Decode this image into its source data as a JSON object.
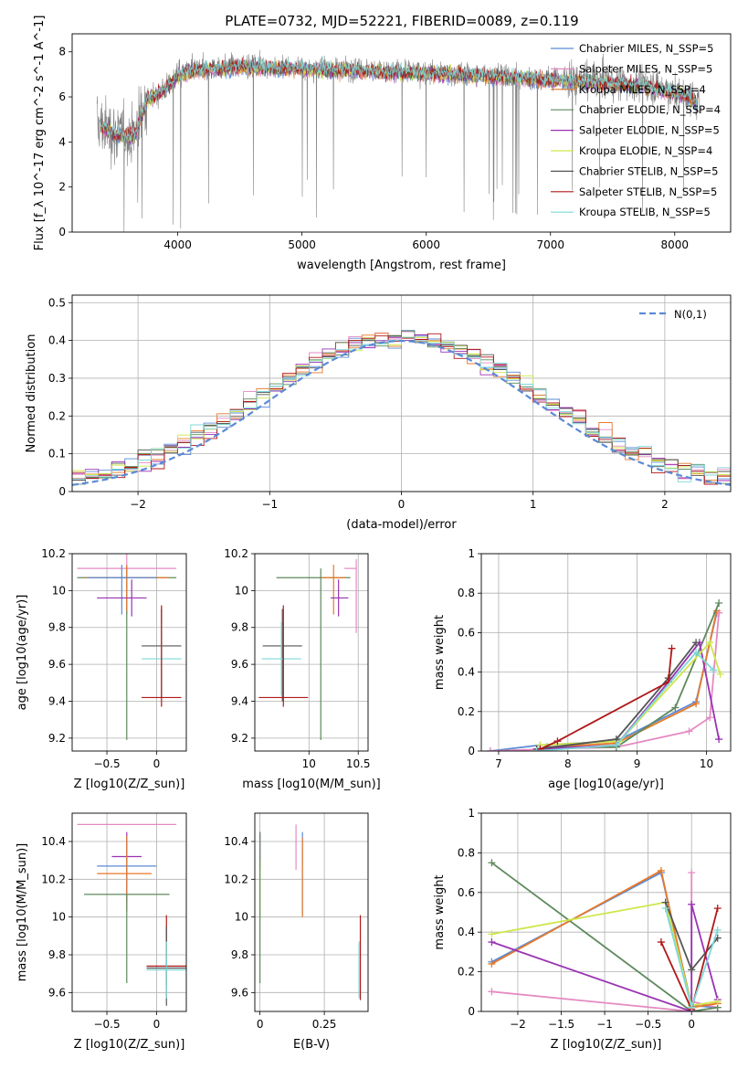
{
  "figure": {
    "title": "PLATE=0732, MJD=52221, FIBERID=0089, z=0.119"
  },
  "palette": {
    "Chabrier MILES": "#5b8ad6",
    "Salpeter MILES": "#e58ac2",
    "Kroupa MILES": "#e8792a",
    "Chabrier ELODIE": "#5d8a5d",
    "Salpeter ELODIE": "#9a33b3",
    "Kroupa ELODIE": "#cfe64a",
    "Chabrier STELIB": "#555555",
    "Salpeter STELIB": "#b01818",
    "Kroupa STELIB": "#7fd8d8",
    "observed": "#808080",
    "normal": "#5b8ad6"
  },
  "chart_data": [
    {
      "id": "spectrum",
      "type": "line",
      "title": "PLATE=0732, MJD=52221, FIBERID=0089, z=0.119",
      "xlabel": "wavelength [Angstrom, rest frame]",
      "ylabel": "Flux [f_λ 10^-17 erg cm^-2 s^-1 A^-1]",
      "xlim": [
        3150,
        8450
      ],
      "ylim": [
        0,
        8.8
      ],
      "xticks": [
        4000,
        5000,
        6000,
        7000,
        8000
      ],
      "yticks": [
        0,
        2,
        4,
        6,
        8
      ],
      "grid": false,
      "legend": "top-right",
      "legend_entries": [
        {
          "label": "Chabrier MILES",
          "n_ssp": "5"
        },
        {
          "label": "Salpeter MILES",
          "n_ssp": "5"
        },
        {
          "label": "Kroupa MILES",
          "n_ssp": "4"
        },
        {
          "label": "Chabrier ELODIE",
          "n_ssp": "4"
        },
        {
          "label": "Salpeter ELODIE",
          "n_ssp": "5"
        },
        {
          "label": "Kroupa ELODIE",
          "n_ssp": "4"
        },
        {
          "label": "Chabrier STELIB",
          "n_ssp": "5"
        },
        {
          "label": "Salpeter STELIB",
          "n_ssp": "5"
        },
        {
          "label": "Kroupa STELIB",
          "n_ssp": "5"
        }
      ],
      "continuum": {
        "x": [
          3350,
          3500,
          3650,
          3750,
          3900,
          4000,
          4100,
          4300,
          4500,
          5000,
          5500,
          6000,
          6500,
          7000,
          7400,
          7800,
          8100,
          8200
        ],
        "y": [
          4.8,
          4.4,
          4.3,
          5.9,
          6.4,
          7.0,
          7.2,
          7.3,
          7.4,
          7.3,
          7.2,
          7.1,
          7.0,
          6.8,
          6.7,
          6.5,
          6.1,
          5.7
        ]
      }
    },
    {
      "id": "residuals",
      "type": "histogram",
      "xlabel": "(data-model)/error",
      "ylabel": "Normed distribution",
      "xlim": [
        -2.5,
        2.5
      ],
      "ylim": [
        0,
        0.52
      ],
      "xticks": [
        -2,
        -1,
        0,
        1,
        2
      ],
      "yticks": [
        0.0,
        0.1,
        0.2,
        0.3,
        0.4,
        0.5
      ],
      "grid": true,
      "legend": "top-right",
      "legend_label": "N(0,1)",
      "bins": {
        "start": -2.5,
        "width": 0.1,
        "count": 50
      }
    },
    {
      "id": "age_vs_Z",
      "type": "errorbar",
      "xlabel": "Z [log10(Z/Z_sun)]",
      "ylabel": "age [log10(age/yr)]",
      "xlim": [
        -0.85,
        0.3
      ],
      "ylim": [
        9.13,
        10.2
      ],
      "xticks": [
        -0.5,
        0.0
      ],
      "yticks": [
        9.2,
        9.4,
        9.6,
        9.8,
        10.0,
        10.2
      ],
      "grid": true,
      "points": [
        {
          "model": "Salpeter MILES",
          "x": -0.3,
          "xerr": [
            0.5,
            0.5
          ],
          "y": 10.12,
          "yerr": [
            0.25,
            0.08
          ]
        },
        {
          "model": "Chabrier ELODIE",
          "x": -0.3,
          "xerr": [
            0.5,
            0.5
          ],
          "y": 10.07,
          "yerr": [
            0.88,
            0.06
          ]
        },
        {
          "model": "Kroupa MILES",
          "x": -0.3,
          "xerr": [
            0.42,
            0.42
          ],
          "y": 10.07,
          "yerr": [
            0.18,
            0.07
          ]
        },
        {
          "model": "Chabrier MILES",
          "x": -0.35,
          "xerr": [
            0.35,
            0.35
          ],
          "y": 10.07,
          "yerr": [
            0.2,
            0.07
          ]
        },
        {
          "model": "Salpeter ELODIE",
          "x": -0.25,
          "xerr": [
            0.35,
            0.15
          ],
          "y": 9.96,
          "yerr": [
            0.1,
            0.1
          ]
        },
        {
          "model": "Chabrier STELIB",
          "x": 0.05,
          "xerr": [
            0.2,
            0.2
          ],
          "y": 9.7,
          "yerr": [
            0.28,
            0.2
          ]
        },
        {
          "model": "Kroupa STELIB",
          "x": 0.05,
          "xerr": [
            0.2,
            0.2
          ],
          "y": 9.63,
          "yerr": [
            0.2,
            0.2
          ]
        },
        {
          "model": "Salpeter STELIB",
          "x": 0.05,
          "xerr": [
            0.2,
            0.2
          ],
          "y": 9.42,
          "yerr": [
            0.05,
            0.5
          ]
        }
      ]
    },
    {
      "id": "age_vs_mass",
      "type": "errorbar",
      "xlabel": "mass [log10(M/M_sun)]",
      "xlim": [
        9.45,
        10.6
      ],
      "ylim": [
        9.13,
        10.2
      ],
      "xticks": [
        10.0,
        10.5
      ],
      "yticks": [
        9.2,
        9.4,
        9.6,
        9.8,
        10.0,
        10.2
      ],
      "grid": true,
      "points": [
        {
          "model": "Salpeter MILES",
          "x": 10.48,
          "xerr": [
            0.12,
            0.0
          ],
          "y": 10.12,
          "yerr": [
            0.35,
            0.05
          ]
        },
        {
          "model": "Chabrier ELODIE",
          "x": 10.12,
          "xerr": [
            0.45,
            0.3
          ],
          "y": 10.07,
          "yerr": [
            0.88,
            0.05
          ]
        },
        {
          "model": "Kroupa MILES",
          "x": 10.25,
          "xerr": [
            0.12,
            0.12
          ],
          "y": 10.07,
          "yerr": [
            0.2,
            0.07
          ]
        },
        {
          "model": "Salpeter ELODIE",
          "x": 10.3,
          "xerr": [
            0.08,
            0.1
          ],
          "y": 9.96,
          "yerr": [
            0.1,
            0.1
          ]
        },
        {
          "model": "Chabrier STELIB",
          "x": 9.73,
          "xerr": [
            0.2,
            0.2
          ],
          "y": 9.7,
          "yerr": [
            0.3,
            0.2
          ]
        },
        {
          "model": "Kroupa STELIB",
          "x": 9.72,
          "xerr": [
            0.2,
            0.2
          ],
          "y": 9.63,
          "yerr": [
            0.2,
            0.2
          ]
        },
        {
          "model": "Salpeter STELIB",
          "x": 9.74,
          "xerr": [
            0.25,
            0.25
          ],
          "y": 9.42,
          "yerr": [
            0.05,
            0.5
          ]
        }
      ]
    },
    {
      "id": "mass_weight_vs_age",
      "type": "line",
      "xlabel": "age [log10(age/yr)]",
      "ylabel": "mass weight",
      "xlim": [
        6.75,
        10.35
      ],
      "ylim": [
        0,
        1.0
      ],
      "xticks": [
        7,
        8,
        9,
        10
      ],
      "yticks": [
        0.0,
        0.2,
        0.4,
        0.6,
        0.8,
        1.0
      ],
      "grid": true,
      "series": [
        {
          "model": "Chabrier MILES",
          "x": [
            6.88,
            7.6,
            8.7,
            9.85,
            10.15
          ],
          "y": [
            0.0,
            0.03,
            0.05,
            0.25,
            0.7
          ]
        },
        {
          "model": "Salpeter MILES",
          "x": [
            6.88,
            7.7,
            8.7,
            9.75,
            10.05,
            10.18
          ],
          "y": [
            0.0,
            0.01,
            0.02,
            0.1,
            0.17,
            0.7
          ]
        },
        {
          "model": "Kroupa MILES",
          "x": [
            7.7,
            8.7,
            9.85,
            10.15
          ],
          "y": [
            0.02,
            0.04,
            0.24,
            0.71
          ]
        },
        {
          "model": "Chabrier ELODIE",
          "x": [
            7.7,
            8.7,
            9.55,
            10.18
          ],
          "y": [
            0.02,
            0.02,
            0.22,
            0.75
          ]
        },
        {
          "model": "Salpeter ELODIE",
          "x": [
            7.55,
            8.7,
            9.45,
            9.9,
            10.18
          ],
          "y": [
            0.01,
            0.03,
            0.35,
            0.55,
            0.06
          ]
        },
        {
          "model": "Kroupa ELODIE",
          "x": [
            7.6,
            8.75,
            10.05,
            10.2
          ],
          "y": [
            0.03,
            0.05,
            0.55,
            0.39
          ]
        },
        {
          "model": "Chabrier STELIB",
          "x": [
            7.55,
            8.7,
            9.45,
            9.85
          ],
          "y": [
            0.01,
            0.06,
            0.37,
            0.55
          ]
        },
        {
          "model": "Salpeter STELIB",
          "x": [
            7.6,
            7.85,
            9.45,
            9.5
          ],
          "y": [
            0.01,
            0.05,
            0.35,
            0.52
          ]
        },
        {
          "model": "Kroupa STELIB",
          "x": [
            7.55,
            8.7,
            9.85,
            10.1
          ],
          "y": [
            0.0,
            0.03,
            0.5,
            0.41
          ]
        }
      ]
    },
    {
      "id": "mass_vs_Z",
      "type": "errorbar",
      "xlabel": "Z [log10(Z/Z_sun)]",
      "ylabel": "mass [log10(M/M_sun)]",
      "xlim": [
        -0.85,
        0.3
      ],
      "ylim": [
        9.5,
        10.55
      ],
      "xticks": [
        -0.5,
        0.0
      ],
      "yticks": [
        9.6,
        9.8,
        10.0,
        10.2,
        10.4
      ],
      "grid": true,
      "points": [
        {
          "model": "Salpeter MILES",
          "x": -0.3,
          "xerr": [
            0.5,
            0.5
          ],
          "y": 10.49,
          "yerr": [
            0.0,
            0.0
          ]
        },
        {
          "model": "Salpeter ELODIE",
          "x": -0.3,
          "xerr": [
            0.15,
            0.15
          ],
          "y": 10.32,
          "yerr": [
            0.24,
            0.13
          ]
        },
        {
          "model": "Chabrier MILES",
          "x": -0.3,
          "xerr": [
            0.3,
            0.3
          ],
          "y": 10.27,
          "yerr": [
            0.12,
            0.15
          ]
        },
        {
          "model": "Kroupa MILES",
          "x": -0.3,
          "xerr": [
            0.3,
            0.25
          ],
          "y": 10.23,
          "yerr": [
            0.2,
            0.2
          ]
        },
        {
          "model": "Chabrier ELODIE",
          "x": -0.3,
          "xerr": [
            0.43,
            0.43
          ],
          "y": 10.12,
          "yerr": [
            0.47,
            0.0
          ]
        },
        {
          "model": "Salpeter STELIB",
          "x": 0.1,
          "xerr": [
            0.2,
            0.2
          ],
          "y": 9.74,
          "yerr": [
            0.1,
            0.27
          ]
        },
        {
          "model": "Chabrier STELIB",
          "x": 0.1,
          "xerr": [
            0.2,
            0.2
          ],
          "y": 9.73,
          "yerr": [
            0.2,
            0.22
          ]
        },
        {
          "model": "Kroupa STELIB",
          "x": 0.1,
          "xerr": [
            0.2,
            0.2
          ],
          "y": 9.72,
          "yerr": [
            0.15,
            0.15
          ]
        }
      ]
    },
    {
      "id": "mass_vs_EBV",
      "type": "errorbar",
      "xlabel": "E(B-V)",
      "xlim": [
        -0.02,
        0.42
      ],
      "ylim": [
        9.5,
        10.55
      ],
      "xticks": [
        0.0,
        0.25
      ],
      "yticks": [
        9.6,
        9.8,
        10.0,
        10.2,
        10.4
      ],
      "grid": true,
      "points": [
        {
          "model": "Salpeter MILES",
          "x": 0.14,
          "y": 10.37,
          "yerr": [
            0.12,
            0.12
          ]
        },
        {
          "model": "Chabrier MILES",
          "x": 0.165,
          "y": 10.23,
          "yerr": [
            0.22,
            0.22
          ]
        },
        {
          "model": "Kroupa MILES",
          "x": 0.165,
          "y": 10.2,
          "yerr": [
            0.2,
            0.22
          ]
        },
        {
          "model": "Salpeter ELODIE",
          "x": 0.0,
          "y": 10.35,
          "yerr": [
            0.1,
            0.1
          ]
        },
        {
          "model": "Kroupa ELODIE",
          "x": 0.0,
          "y": 10.15,
          "yerr": [
            0.15,
            0.15
          ]
        },
        {
          "model": "Chabrier ELODIE",
          "x": 0.0,
          "y": 10.0,
          "yerr": [
            0.35,
            0.45
          ]
        },
        {
          "model": "Salpeter STELIB",
          "x": 0.39,
          "y": 9.78,
          "yerr": [
            0.22,
            0.23
          ]
        },
        {
          "model": "Kroupa STELIB",
          "x": 0.385,
          "y": 9.72,
          "yerr": [
            0.15,
            0.15
          ]
        }
      ]
    },
    {
      "id": "mass_weight_vs_Z",
      "type": "line",
      "xlabel": "Z [log10(Z/Z_sun)]",
      "ylabel": "mass weight",
      "xlim": [
        -2.42,
        0.45
      ],
      "ylim": [
        0,
        1.0
      ],
      "xticks": [
        -2.0,
        -1.5,
        -1.0,
        -0.5,
        0.0
      ],
      "yticks": [
        0.0,
        0.2,
        0.4,
        0.6,
        0.8,
        1.0
      ],
      "grid": true,
      "series": [
        {
          "model": "Chabrier MILES",
          "x": [
            -2.3,
            -0.35,
            0.0,
            0.3
          ],
          "y": [
            0.25,
            0.7,
            0.03,
            0.02
          ]
        },
        {
          "model": "Salpeter MILES",
          "x": [
            -2.3,
            -0.0,
            -0.0,
            0.0,
            0.3
          ],
          "y": [
            0.1,
            0.0,
            0.7,
            0.05,
            0.02
          ]
        },
        {
          "model": "Kroupa MILES",
          "x": [
            -2.3,
            -0.35,
            0.0,
            0.3
          ],
          "y": [
            0.24,
            0.71,
            0.02,
            0.04
          ]
        },
        {
          "model": "Chabrier ELODIE",
          "x": [
            -2.3,
            0.0,
            0.3
          ],
          "y": [
            0.75,
            0.0,
            0.02
          ]
        },
        {
          "model": "Salpeter ELODIE",
          "x": [
            -2.3,
            0.0,
            0.0,
            0.3
          ],
          "y": [
            0.35,
            0.0,
            0.54,
            0.06
          ]
        },
        {
          "model": "Kroupa ELODIE",
          "x": [
            -2.3,
            -0.3,
            0.0,
            0.3
          ],
          "y": [
            0.39,
            0.55,
            0.03,
            0.05
          ]
        },
        {
          "model": "Chabrier STELIB",
          "x": [
            -0.3,
            0.0,
            0.3
          ],
          "y": [
            0.55,
            0.21,
            0.37
          ]
        },
        {
          "model": "Salpeter STELIB",
          "x": [
            -0.35,
            0.0,
            0.3
          ],
          "y": [
            0.35,
            0.01,
            0.52
          ]
        },
        {
          "model": "Kroupa STELIB",
          "x": [
            -0.3,
            0.0,
            0.3
          ],
          "y": [
            0.52,
            0.02,
            0.41
          ]
        }
      ]
    }
  ]
}
